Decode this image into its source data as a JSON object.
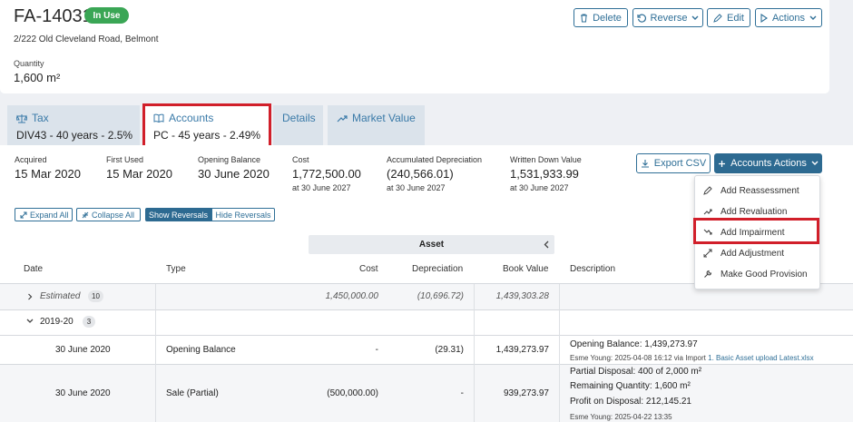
{
  "header": {
    "asset_id": "FA-14031",
    "status_badge": "In Use",
    "address": "2/222 Old Cleveland Road, Belmont",
    "quantity_label": "Quantity",
    "quantity_value": "1,600 m²",
    "buttons": {
      "delete": "Delete",
      "reverse": "Reverse",
      "edit": "Edit",
      "actions": "Actions"
    }
  },
  "tabs": [
    {
      "label": "Tax",
      "subtitle": "DIV43 - 40 years - 2.5%"
    },
    {
      "label": "Accounts",
      "subtitle": "PC - 45 years - 2.49%"
    },
    {
      "label": "Details"
    },
    {
      "label": "Market Value"
    }
  ],
  "summary": {
    "acquired_label": "Acquired",
    "acquired_value": "15 Mar 2020",
    "first_used_label": "First Used",
    "first_used_value": "15 Mar 2020",
    "opening_label": "Opening Balance",
    "opening_value": "30 June 2020",
    "cost_label": "Cost",
    "cost_value": "1,772,500.00",
    "cost_sub": "at 30 June 2027",
    "accum_label": "Accumulated Depreciation",
    "accum_value": "(240,566.01)",
    "accum_sub": "at 30 June 2027",
    "wdv_label": "Written Down Value",
    "wdv_value": "1,531,933.99",
    "wdv_sub": "at 30 June 2027"
  },
  "toolbar": {
    "export_csv": "Export CSV",
    "accounts_actions": "Accounts Actions",
    "expand_all": "Expand All",
    "collapse_all": "Collapse All",
    "show_reversals": "Show Reversals",
    "hide_reversals": "Hide Reversals"
  },
  "accounts_menu": {
    "items": [
      "Add Reassessment",
      "Add Revaluation",
      "Add Impairment",
      "Add Adjustment",
      "Make Good Provision"
    ]
  },
  "table": {
    "group_header": "Asset",
    "columns": {
      "date": "Date",
      "type": "Type",
      "cost": "Cost",
      "depreciation": "Depreciation",
      "book_value": "Book Value",
      "description": "Description"
    },
    "estimated": {
      "label": "Estimated",
      "count": "10",
      "cost": "1,450,000.00",
      "depreciation": "(10,696.72)",
      "book_value": "1,439,303.28"
    },
    "group": {
      "label": "2019-20",
      "count": "3"
    },
    "rows": [
      {
        "date": "30 June 2020",
        "type": "Opening Balance",
        "cost": "-",
        "depreciation": "(29.31)",
        "book_value": "1,439,273.97",
        "desc_main": "Opening Balance: 1,439,273.97",
        "desc_meta": "Esme Young: 2025-04-08 16:12 via Import",
        "desc_link": "1. Basic Asset upload Latest.xlsx"
      },
      {
        "date": "30 June 2020",
        "type": "Sale (Partial)",
        "cost": "(500,000.00)",
        "depreciation": "-",
        "book_value": "939,273.97",
        "desc_line1": "Partial Disposal: 400 of 2,000 m²",
        "desc_line2": "Remaining Quantity: 1,600 m²",
        "desc_line3": "Profit on Disposal: 212,145.21",
        "desc_meta": "Esme Young: 2025-04-22 13:35"
      }
    ]
  },
  "colors": {
    "accent": "#2f6f97",
    "highlight": "#d11f2a",
    "badge": "#3aa655"
  }
}
